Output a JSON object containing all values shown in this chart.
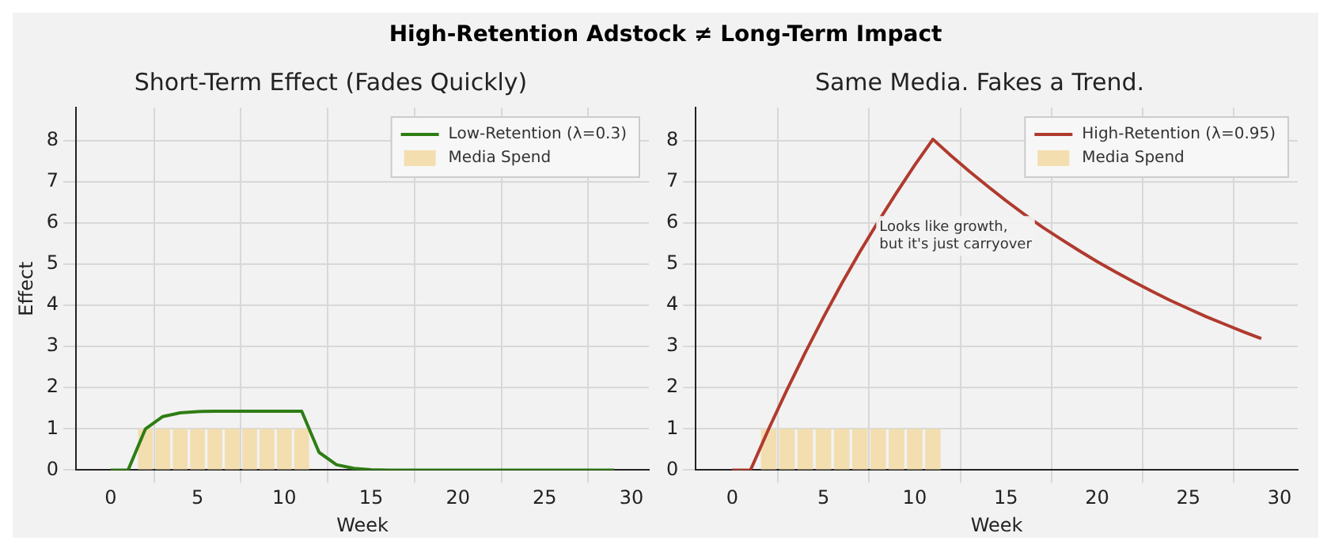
{
  "chart_data": [
    {
      "type": "line",
      "title": "Short-Term Effect (Fades Quickly)",
      "xlabel": "Week",
      "ylabel": "Effect",
      "annotations": [
        "High-Retention Adstock ≠ Long-Term Impact"
      ],
      "x": [
        0,
        1,
        2,
        3,
        4,
        5,
        6,
        7,
        8,
        9,
        10,
        11,
        12,
        13,
        14,
        15,
        16,
        17,
        18,
        19,
        20,
        21,
        22,
        23,
        24,
        25,
        26,
        27,
        28,
        29
      ],
      "xlim": [
        -2,
        31
      ],
      "xticks": [
        0,
        5,
        10,
        15,
        20,
        25,
        30
      ],
      "ylim": [
        0,
        8.8
      ],
      "yticks": [
        0,
        1,
        2,
        3,
        4,
        5,
        6,
        7,
        8
      ],
      "grid": true,
      "legend": "top right",
      "marker": "none",
      "line_style": "solid",
      "series": [
        {
          "name": "Low-Retention (λ=0.3)",
          "color": "#2e7d14",
          "values": [
            0,
            0,
            1.0,
            1.3,
            1.39,
            1.42,
            1.43,
            1.43,
            1.43,
            1.43,
            1.43,
            1.43,
            0.43,
            0.13,
            0.04,
            0.01,
            0,
            0,
            0,
            0,
            0,
            0,
            0,
            0,
            0,
            0,
            0,
            0,
            0,
            0
          ]
        },
        {
          "name": "Media Spend",
          "type": "bar",
          "color": "#f3deb0",
          "x": [
            2,
            3,
            4,
            5,
            6,
            7,
            8,
            9,
            10,
            11
          ],
          "values": [
            1,
            1,
            1,
            1,
            1,
            1,
            1,
            1,
            1,
            1
          ]
        }
      ]
    },
    {
      "type": "line",
      "title": "Same Media. Fakes a Trend.",
      "xlabel": "Week",
      "annotations": [
        "Looks like growth,\nbut it's just carryover"
      ],
      "x": [
        0,
        1,
        2,
        3,
        4,
        5,
        6,
        7,
        8,
        9,
        10,
        11,
        12,
        13,
        14,
        15,
        16,
        17,
        18,
        19,
        20,
        21,
        22,
        23,
        24,
        25,
        26,
        27,
        28,
        29
      ],
      "xlim": [
        -2,
        31
      ],
      "xticks": [
        0,
        5,
        10,
        15,
        20,
        25,
        30
      ],
      "ylim": [
        0,
        8.8
      ],
      "yticks": [
        0,
        1,
        2,
        3,
        4,
        5,
        6,
        7,
        8
      ],
      "grid": true,
      "legend": "top right",
      "marker": "none",
      "line_style": "solid",
      "series": [
        {
          "name": "High-Retention (λ=0.95)",
          "color": "#b03a2e",
          "values": [
            0,
            0,
            1,
            1.95,
            2.85,
            3.71,
            4.53,
            5.3,
            6.03,
            6.73,
            7.4,
            8.03,
            7.63,
            7.25,
            6.89,
            6.54,
            6.21,
            5.9,
            5.61,
            5.33,
            5.06,
            4.81,
            4.57,
            4.34,
            4.12,
            3.92,
            3.72,
            3.54,
            3.36,
            3.19
          ]
        },
        {
          "name": "Media Spend",
          "type": "bar",
          "color": "#f3deb0",
          "x": [
            2,
            3,
            4,
            5,
            6,
            7,
            8,
            9,
            10,
            11
          ],
          "values": [
            1,
            1,
            1,
            1,
            1,
            1,
            1,
            1,
            1,
            1
          ]
        }
      ]
    }
  ]
}
